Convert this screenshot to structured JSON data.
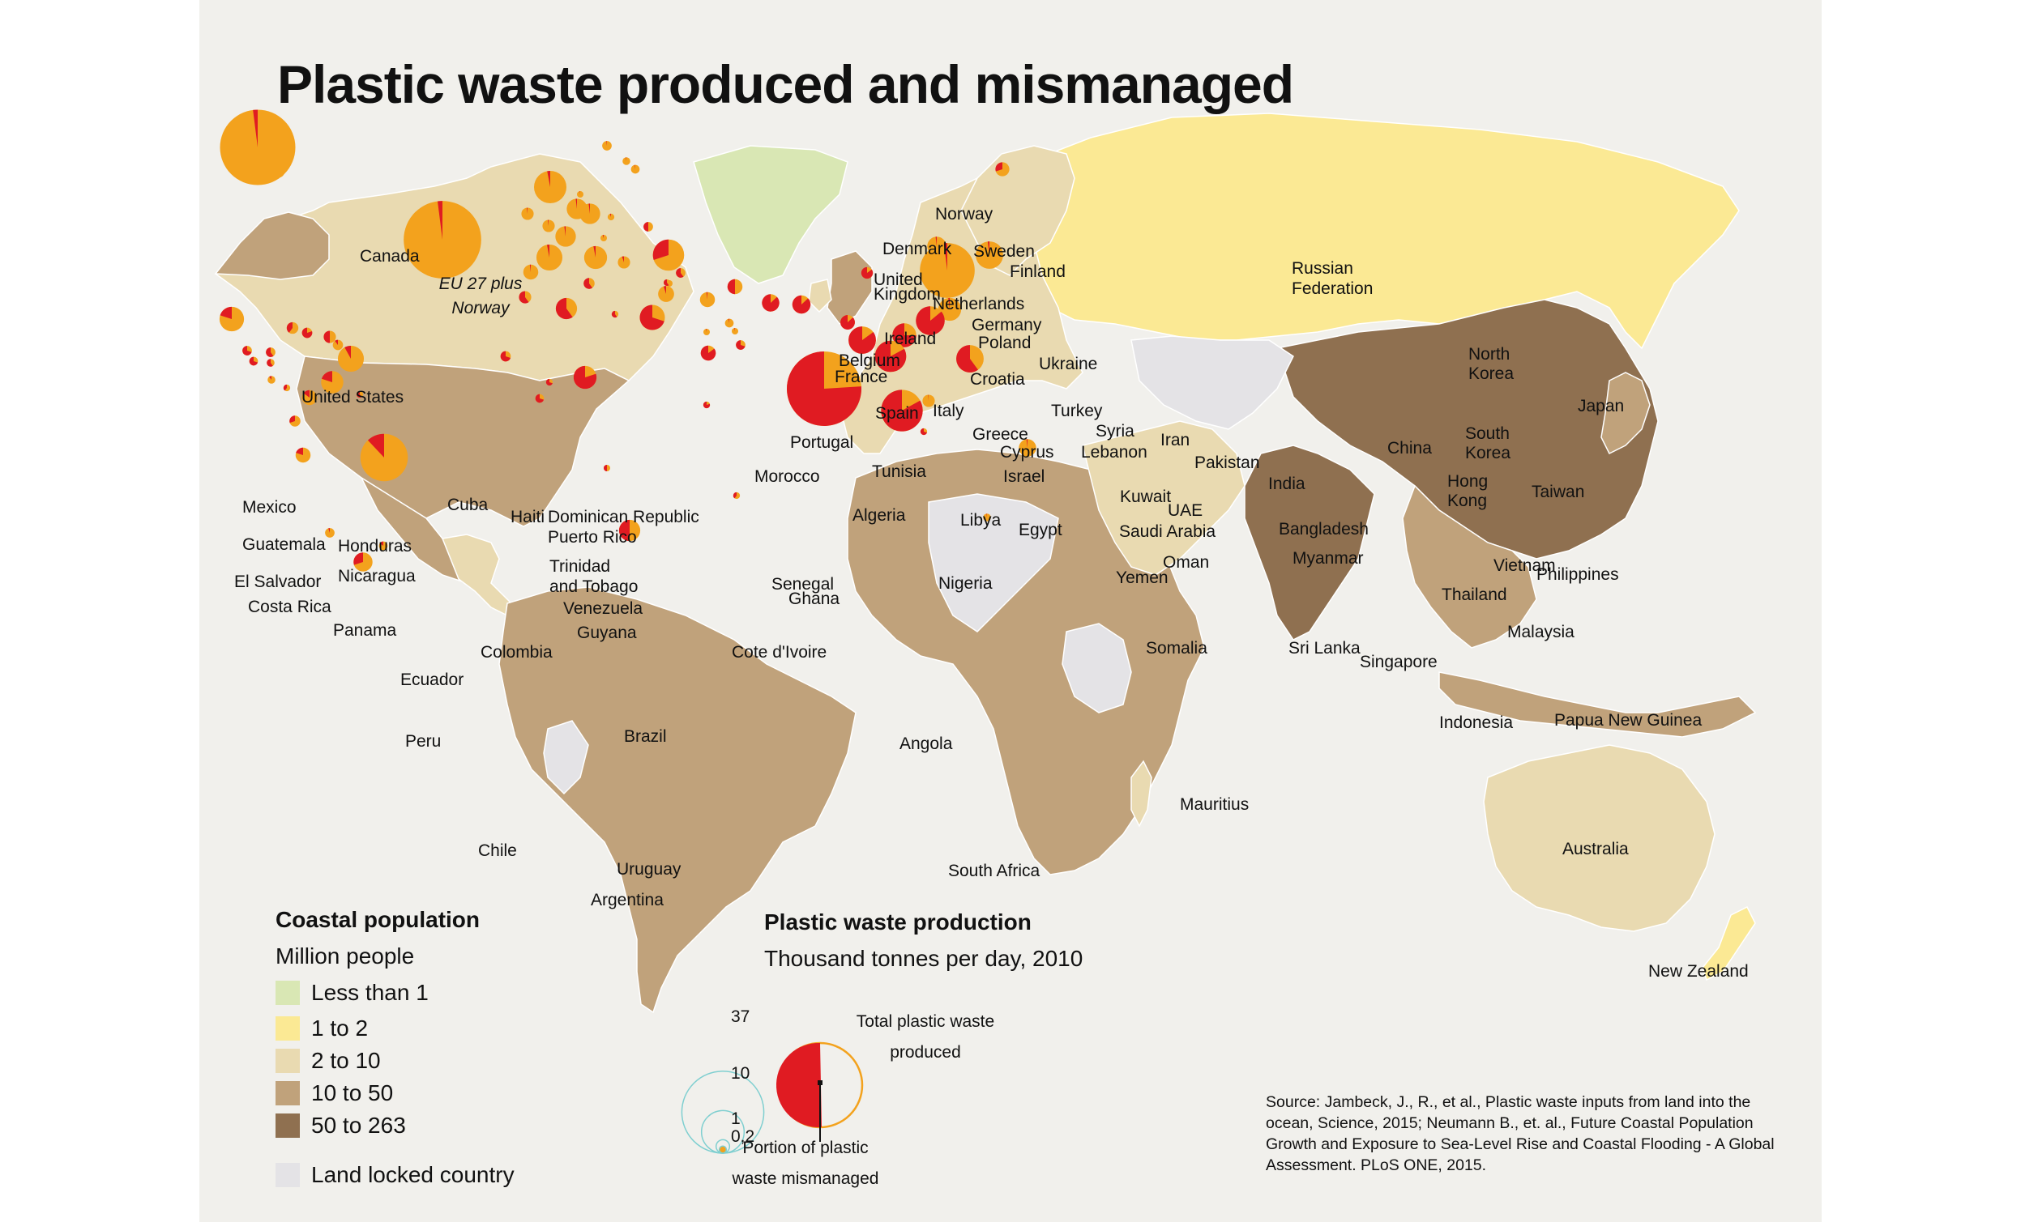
{
  "title": "Plastic waste produced and mismanaged",
  "colors": {
    "background": "#f1f0ec",
    "lt1": "#d9e7b4",
    "r1to2": "#fbe994",
    "r2to10": "#e9dab1",
    "r10to50": "#c0a27b",
    "r50to263": "#8f7050",
    "landlocked": "#e4e3e6",
    "ocean_land_white": "#ffffff",
    "total_waste": "#f3a21d",
    "mismanaged": "#e01b22"
  },
  "legend_population": {
    "title": "Coastal population",
    "subtitle": "Million people",
    "items": [
      {
        "label": "Less than 1",
        "color": "#d9e7b4"
      },
      {
        "label": "1 to 2",
        "color": "#fbe994"
      },
      {
        "label": "2 to 10",
        "color": "#e9dab1"
      },
      {
        "label": "10 to 50",
        "color": "#c0a27b"
      },
      {
        "label": "50 to 263",
        "color": "#8f7050"
      }
    ],
    "landlocked": {
      "label": "Land locked country",
      "color": "#e4e3e6"
    }
  },
  "legend_waste": {
    "title": "Plastic waste production",
    "subtitle": "Thousand tonnes per day, 2010",
    "sizes": [
      "37",
      "10",
      "1",
      "0,2"
    ],
    "total_label_1": "Total plastic waste",
    "total_label_2": "produced",
    "mismanaged_label_1": "Portion of plastic",
    "mismanaged_label_2": "waste mismanaged"
  },
  "source": "Source: Jambeck, J., R., et al., Plastic waste inputs from land into the ocean, Science, 2015; Neumann B., et. al., Future Coastal Population Growth and Exposure to Sea-Level Rise and Coastal Flooding - A Global Assessment. PLoS ONE, 2015.",
  "pies": [
    {
      "name": "Canada",
      "size": 0.9,
      "mis": 0.02
    },
    {
      "name": "United States",
      "size": 37.8,
      "mis": 0.02
    },
    {
      "name": "EU 27 plus Norway",
      "size": 40.0,
      "mis": 0.02
    },
    {
      "name": "Mexico",
      "size": 4.0,
      "mis": 0.2
    },
    {
      "name": "Guatemala",
      "size": 0.6,
      "mis": 0.7
    },
    {
      "name": "El Salvador",
      "size": 0.5,
      "mis": 0.7
    },
    {
      "name": "Honduras",
      "size": 0.6,
      "mis": 0.6
    },
    {
      "name": "Nicaragua",
      "size": 0.4,
      "mis": 0.6
    },
    {
      "name": "Costa Rica",
      "size": 0.4,
      "mis": 0.1
    },
    {
      "name": "Panama",
      "size": 0.3,
      "mis": 0.4
    },
    {
      "name": "Cuba",
      "size": 0.9,
      "mis": 0.4
    },
    {
      "name": "Haiti",
      "size": 0.7,
      "mis": 0.8
    },
    {
      "name": "Dominican Republic",
      "size": 1.0,
      "mis": 0.5
    },
    {
      "name": "Puerto Rico",
      "size": 0.7,
      "mis": 0.1
    },
    {
      "name": "Trinidad and Tobago",
      "size": 4.5,
      "mis": 0.08
    },
    {
      "name": "Venezuela",
      "size": 3.3,
      "mis": 0.2
    },
    {
      "name": "Guyana",
      "size": 0.2,
      "mis": 0.6
    },
    {
      "name": "Colombia",
      "size": 1.5,
      "mis": 0.15
    },
    {
      "name": "Ecuador",
      "size": 0.8,
      "mis": 0.3
    },
    {
      "name": "Peru",
      "size": 1.5,
      "mis": 0.2
    },
    {
      "name": "Brazil",
      "size": 15.0,
      "mis": 0.12
    },
    {
      "name": "Chile",
      "size": 0.6,
      "mis": 0.05
    },
    {
      "name": "Uruguay",
      "size": 0.5,
      "mis": 0.15
    },
    {
      "name": "Argentina",
      "size": 2.4,
      "mis": 0.3
    },
    {
      "name": "Norway",
      "size": 0.6,
      "mis": 0.02
    },
    {
      "name": "Sweden",
      "size": 0.4,
      "mis": 0.02
    },
    {
      "name": "Finland",
      "size": 0.5,
      "mis": 0.02
    },
    {
      "name": "Denmark",
      "size": 0.2,
      "mis": 0.02
    },
    {
      "name": "United Kingdom",
      "size": 7.0,
      "mis": 0.03
    },
    {
      "name": "Netherlands",
      "size": 2.8,
      "mis": 0.02
    },
    {
      "name": "Germany",
      "size": 2.8,
      "mis": 0.02
    },
    {
      "name": "Poland",
      "size": 0.3,
      "mis": 0.05
    },
    {
      "name": "Ireland",
      "size": 1.0,
      "mis": 0.02
    },
    {
      "name": "Belgium",
      "size": 1.0,
      "mis": 0.02
    },
    {
      "name": "France",
      "size": 2.8,
      "mis": 0.02
    },
    {
      "name": "Croatia",
      "size": 0.2,
      "mis": 0.05
    },
    {
      "name": "Ukraine",
      "size": 0.6,
      "mis": 0.5
    },
    {
      "name": "Spain",
      "size": 4.5,
      "mis": 0.03
    },
    {
      "name": "Portugal",
      "size": 1.5,
      "mis": 0.02
    },
    {
      "name": "Italy",
      "size": 3.5,
      "mis": 0.03
    },
    {
      "name": "Greece",
      "size": 1.0,
      "mis": 0.05
    },
    {
      "name": "Turkey",
      "size": 6.5,
      "mis": 0.3
    },
    {
      "name": "Cyprus",
      "size": 0.2,
      "mis": 0.05
    },
    {
      "name": "Syria",
      "size": 0.6,
      "mis": 0.6
    },
    {
      "name": "Lebanon",
      "size": 0.2,
      "mis": 0.6
    },
    {
      "name": "Israel",
      "size": 1.7,
      "mis": 0.05
    },
    {
      "name": "Morocco",
      "size": 1.0,
      "mis": 0.6
    },
    {
      "name": "Algeria",
      "size": 3.0,
      "mis": 0.6
    },
    {
      "name": "Tunisia",
      "size": 0.8,
      "mis": 0.6
    },
    {
      "name": "Libya",
      "size": 0.3,
      "mis": 0.6
    },
    {
      "name": "Egypt",
      "size": 4.2,
      "mis": 0.7
    },
    {
      "name": "Iran",
      "size": 1.5,
      "mis": 0.5
    },
    {
      "name": "Kuwait",
      "size": 1.5,
      "mis": 0.02
    },
    {
      "name": "Saudi Arabia",
      "size": 0.5,
      "mis": 0.03
    },
    {
      "name": "UAE",
      "size": 0.2,
      "mis": 0.03
    },
    {
      "name": "Oman",
      "size": 0.2,
      "mis": 0.03
    },
    {
      "name": "Yemen",
      "size": 0.6,
      "mis": 0.7
    },
    {
      "name": "Pakistan",
      "size": 1.5,
      "mis": 0.85
    },
    {
      "name": "India",
      "size": 2.0,
      "mis": 0.87
    },
    {
      "name": "Bangladesh",
      "size": 2.2,
      "mis": 0.87
    },
    {
      "name": "Myanmar",
      "size": 1.4,
      "mis": 0.87
    },
    {
      "name": "Sri Lanka",
      "size": 5.0,
      "mis": 0.85
    },
    {
      "name": "China",
      "size": 37.0,
      "mis": 0.76
    },
    {
      "name": "North Korea",
      "size": 0.9,
      "mis": 0.85
    },
    {
      "name": "South Korea",
      "size": 2.4,
      "mis": 0.02
    },
    {
      "name": "Japan",
      "size": 20.0,
      "mis": 0.02
    },
    {
      "name": "Taiwan",
      "size": 5.0,
      "mis": 0.02
    },
    {
      "name": "Hong Kong",
      "size": 3.5,
      "mis": 0.02
    },
    {
      "name": "Vietnam",
      "size": 5.5,
      "mis": 0.86
    },
    {
      "name": "Thailand",
      "size": 3.8,
      "mis": 0.75
    },
    {
      "name": "Philippines",
      "size": 6.5,
      "mis": 0.83
    },
    {
      "name": "Malaysia",
      "size": 5.0,
      "mis": 0.6
    },
    {
      "name": "Singapore",
      "size": 1.0,
      "mis": 0.01
    },
    {
      "name": "Indonesia",
      "size": 11.5,
      "mis": 0.83
    },
    {
      "name": "Papua New Guinea",
      "size": 0.3,
      "mis": 0.7
    },
    {
      "name": "Australia",
      "size": 2.0,
      "mis": 0.02
    },
    {
      "name": "New Zealand",
      "size": 0.4,
      "mis": 0.02
    },
    {
      "name": "Russian Federation",
      "size": 1.3,
      "mis": 0.3
    },
    {
      "name": "Senegal",
      "size": 0.7,
      "mis": 0.7
    },
    {
      "name": "Ghana",
      "size": 0.3,
      "mis": 0.7
    },
    {
      "name": "Cote d'Ivoire",
      "size": 0.5,
      "mis": 0.7
    },
    {
      "name": "Nigeria",
      "size": 3.5,
      "mis": 0.8
    },
    {
      "name": "Angola",
      "size": 0.2,
      "mis": 0.5
    },
    {
      "name": "South Africa",
      "size": 3.0,
      "mis": 0.5
    },
    {
      "name": "Somalia",
      "size": 0.3,
      "mis": 0.8
    },
    {
      "name": "Mauritius",
      "size": 0.3,
      "mis": 0.4
    }
  ],
  "labels": [
    "Canada",
    "United States",
    "EU 27 plus",
    "Norway",
    "Mexico",
    "Guatemala",
    "El Salvador",
    "Honduras",
    "Nicaragua",
    "Costa Rica",
    "Panama",
    "Cuba",
    "Haiti",
    "Dominican Republic",
    "Puerto Rico",
    "Trinidad",
    "and Tobago",
    "Venezuela",
    "Guyana",
    "Colombia",
    "Ecuador",
    "Peru",
    "Brazil",
    "Chile",
    "Uruguay",
    "Argentina",
    "Norway",
    "Sweden",
    "Finland",
    "Denmark",
    "United",
    "Kingdom",
    "Netherlands",
    "Germany",
    "Poland",
    "Ireland",
    "Belgium",
    "France",
    "Croatia",
    "Ukraine",
    "Spain",
    "Portugal",
    "Italy",
    "Greece",
    "Turkey",
    "Cyprus",
    "Syria",
    "Lebanon",
    "Israel",
    "Morocco",
    "Algeria",
    "Tunisia",
    "Libya",
    "Egypt",
    "Iran",
    "Kuwait",
    "Saudi Arabia",
    "UAE",
    "Oman",
    "Yemen",
    "Pakistan",
    "India",
    "Bangladesh",
    "Myanmar",
    "Sri Lanka",
    "China",
    "North",
    "Korea",
    "South",
    "Korea",
    "Japan",
    "Taiwan",
    "Hong",
    "Kong",
    "Vietnam",
    "Thailand",
    "Philippines",
    "Malaysia",
    "Singapore",
    "Indonesia",
    "Papua New Guinea",
    "Australia",
    "New Zealand",
    "Russian",
    "Federation",
    "Senegal",
    "Ghana",
    "Cote d'Ivoire",
    "Nigeria",
    "Angola",
    "South Africa",
    "Somalia",
    "Mauritius"
  ]
}
